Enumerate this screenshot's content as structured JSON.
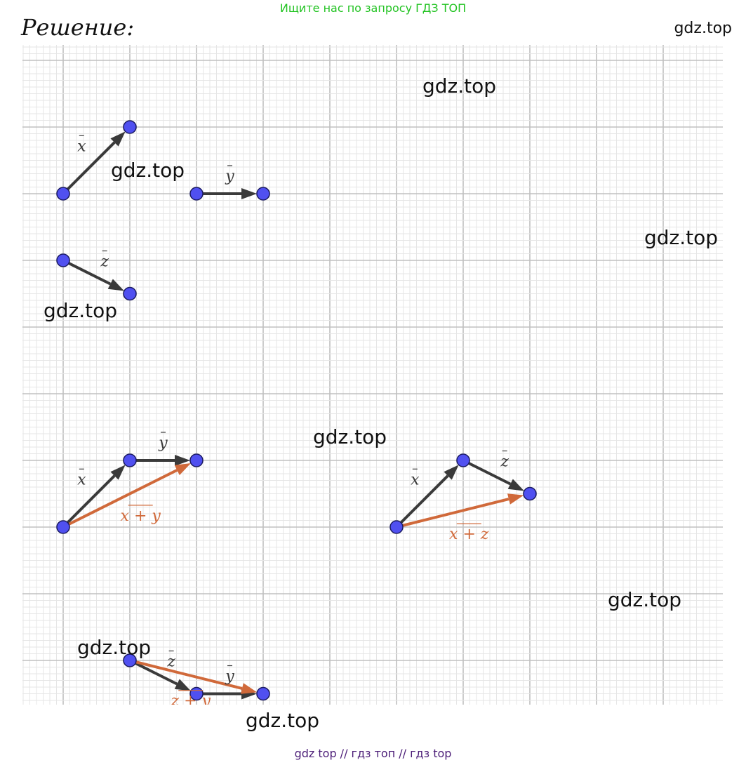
{
  "header": {
    "banner": "Ищите нас по запросу ГДЗ ТОП",
    "title": "Решение:",
    "corner_mark": "gdz.top"
  },
  "watermarks": [
    "gdz.top",
    "gdz.top",
    "gdz.top",
    "gdz.top",
    "gdz.top",
    "gdz.top",
    "gdz.top",
    "gdz.top"
  ],
  "footer": "gdz top  //  гдз топ  //  гдз top",
  "colors": {
    "vector": "#3a3a3a",
    "sum_vector": "#d0693a",
    "point_fill": "#5050f0",
    "point_stroke": "#1a1a60",
    "grid_major": "#c0c0c0",
    "grid_minor": "#e6e6e6",
    "banner": "#22c322",
    "footer": "#4b1d77"
  },
  "diagram": {
    "groups": [
      {
        "name": "given-x",
        "points": [
          [
            0,
            0
          ],
          [
            2,
            2
          ]
        ],
        "vectors": [
          {
            "from": 0,
            "to": 1,
            "label": "x",
            "kind": "base"
          }
        ]
      },
      {
        "name": "given-y",
        "points": [
          [
            0,
            0
          ],
          [
            2,
            0
          ]
        ],
        "vectors": [
          {
            "from": 0,
            "to": 1,
            "label": "y",
            "kind": "base"
          }
        ]
      },
      {
        "name": "given-z",
        "points": [
          [
            0,
            0
          ],
          [
            2,
            -1
          ]
        ],
        "vectors": [
          {
            "from": 0,
            "to": 1,
            "label": "z",
            "kind": "base"
          }
        ]
      },
      {
        "name": "sum-x-plus-y",
        "points": [
          [
            0,
            0
          ],
          [
            2,
            2
          ],
          [
            4,
            2
          ]
        ],
        "vectors": [
          {
            "from": 0,
            "to": 1,
            "label": "x",
            "kind": "base"
          },
          {
            "from": 1,
            "to": 2,
            "label": "y",
            "kind": "base"
          },
          {
            "from": 0,
            "to": 2,
            "label": "x + y",
            "kind": "sum"
          }
        ]
      },
      {
        "name": "sum-x-plus-z",
        "points": [
          [
            0,
            0
          ],
          [
            2,
            2
          ],
          [
            4,
            1
          ]
        ],
        "vectors": [
          {
            "from": 0,
            "to": 1,
            "label": "x",
            "kind": "base"
          },
          {
            "from": 1,
            "to": 2,
            "label": "z",
            "kind": "base"
          },
          {
            "from": 0,
            "to": 2,
            "label": "x + z",
            "kind": "sum"
          }
        ]
      },
      {
        "name": "sum-z-plus-y",
        "points": [
          [
            0,
            0
          ],
          [
            2,
            -1
          ],
          [
            4,
            -1
          ]
        ],
        "vectors": [
          {
            "from": 0,
            "to": 1,
            "label": "z",
            "kind": "base"
          },
          {
            "from": 1,
            "to": 2,
            "label": "y",
            "kind": "base"
          },
          {
            "from": 0,
            "to": 2,
            "label": "z + y",
            "kind": "sum"
          }
        ]
      }
    ]
  }
}
